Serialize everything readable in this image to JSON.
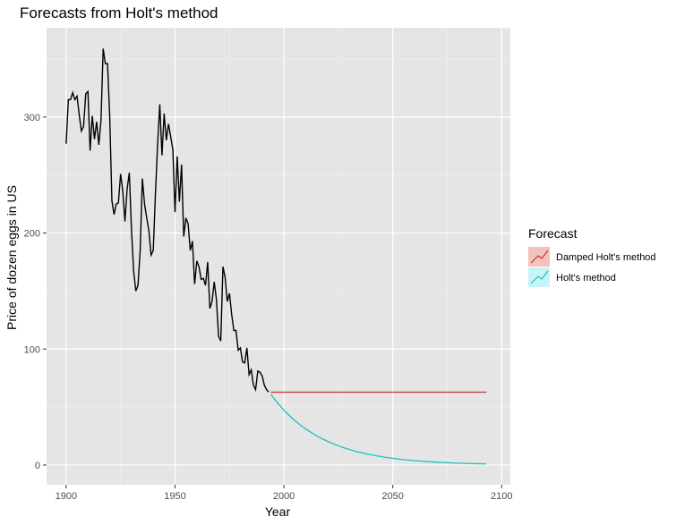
{
  "chart_data": {
    "type": "line",
    "title": "Forecasts from Holt's method",
    "xlabel": "Year",
    "ylabel": "Price of dozen eggs in US",
    "xlim": [
      1891,
      2104
    ],
    "ylim": [
      -17,
      377
    ],
    "x_ticks": [
      1900,
      1950,
      2000,
      2050,
      2100
    ],
    "y_ticks": [
      0,
      100,
      200,
      300
    ],
    "grid": true,
    "legend": {
      "title": "Forecast",
      "position": "right",
      "entries": [
        {
          "label": "Damped Holt's method",
          "color": "#c0392b",
          "fill": "#f4c2bd"
        },
        {
          "label": "Holt's method",
          "color": "#1fbfc4",
          "fill": "#c7f5f6"
        }
      ]
    },
    "series": [
      {
        "color": "#000000",
        "points": [
          [
            1900,
            277
          ],
          [
            1901,
            315
          ],
          [
            1902,
            315
          ],
          [
            1903,
            321
          ],
          [
            1904,
            315
          ],
          [
            1905,
            318
          ],
          [
            1906,
            302
          ],
          [
            1907,
            288
          ],
          [
            1908,
            292
          ],
          [
            1909,
            320
          ],
          [
            1910,
            322
          ],
          [
            1911,
            271
          ],
          [
            1912,
            301
          ],
          [
            1913,
            281
          ],
          [
            1914,
            296
          ],
          [
            1915,
            276
          ],
          [
            1916,
            297
          ],
          [
            1917,
            359
          ],
          [
            1918,
            346
          ],
          [
            1919,
            346
          ],
          [
            1920,
            301
          ],
          [
            1921,
            228
          ],
          [
            1922,
            216
          ],
          [
            1923,
            225
          ],
          [
            1924,
            226
          ],
          [
            1925,
            251
          ],
          [
            1926,
            236
          ],
          [
            1927,
            210
          ],
          [
            1928,
            238
          ],
          [
            1929,
            252
          ],
          [
            1930,
            203
          ],
          [
            1931,
            167
          ],
          [
            1932,
            150
          ],
          [
            1933,
            155
          ],
          [
            1934,
            185
          ],
          [
            1935,
            247
          ],
          [
            1936,
            225
          ],
          [
            1937,
            213
          ],
          [
            1938,
            202
          ],
          [
            1939,
            181
          ],
          [
            1940,
            185
          ],
          [
            1941,
            234
          ],
          [
            1942,
            276
          ],
          [
            1943,
            311
          ],
          [
            1944,
            267
          ],
          [
            1945,
            303
          ],
          [
            1946,
            280
          ],
          [
            1947,
            294
          ],
          [
            1948,
            283
          ],
          [
            1949,
            272
          ],
          [
            1950,
            218
          ],
          [
            1951,
            266
          ],
          [
            1952,
            227
          ],
          [
            1953,
            259
          ],
          [
            1954,
            197
          ],
          [
            1955,
            213
          ],
          [
            1956,
            208
          ],
          [
            1957,
            185
          ],
          [
            1958,
            193
          ],
          [
            1959,
            156
          ],
          [
            1960,
            176
          ],
          [
            1961,
            171
          ],
          [
            1962,
            160
          ],
          [
            1963,
            161
          ],
          [
            1964,
            155
          ],
          [
            1965,
            175
          ],
          [
            1966,
            135
          ],
          [
            1967,
            141
          ],
          [
            1968,
            158
          ],
          [
            1969,
            143
          ],
          [
            1970,
            111
          ],
          [
            1971,
            107
          ],
          [
            1972,
            171
          ],
          [
            1973,
            162
          ],
          [
            1974,
            141
          ],
          [
            1975,
            148
          ],
          [
            1976,
            130
          ],
          [
            1977,
            116
          ],
          [
            1978,
            116
          ],
          [
            1979,
            99
          ],
          [
            1980,
            101
          ],
          [
            1981,
            89
          ],
          [
            1982,
            88
          ],
          [
            1983,
            101
          ],
          [
            1984,
            78
          ],
          [
            1985,
            82
          ],
          [
            1986,
            69
          ],
          [
            1987,
            65
          ],
          [
            1988,
            81
          ],
          [
            1989,
            80
          ],
          [
            1990,
            77
          ],
          [
            1991,
            69
          ],
          [
            1992,
            65
          ],
          [
            1993,
            63
          ]
        ]
      }
    ],
    "forecasts": [
      {
        "label": "Damped Holt's method",
        "color": "#c0392b",
        "model": "flat",
        "start_year": 1994,
        "end_year": 2093,
        "level": 62.8
      },
      {
        "label": "Holt's method",
        "color": "#1fbfc4",
        "model": "exp-decay",
        "start_year": 1994,
        "end_year": 2093,
        "start_value": 61,
        "decay_rate": 0.042
      }
    ]
  }
}
